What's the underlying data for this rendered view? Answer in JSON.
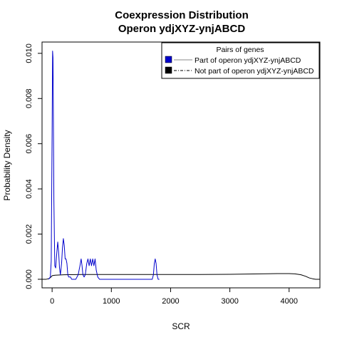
{
  "chart_data": {
    "type": "line",
    "title": "Coexpression Distribution",
    "subtitle": "Operon ydjXYZ-ynjABCD",
    "xlabel": "SCR",
    "ylabel": "Probability Density",
    "xlim": [
      -170,
      4520
    ],
    "ylim": [
      -0.00038,
      0.0105
    ],
    "x_ticks": [
      0,
      1000,
      2000,
      3000,
      4000
    ],
    "x_tick_labels": [
      "0",
      "1000",
      "2000",
      "3000",
      "4000"
    ],
    "y_ticks": [
      0.0,
      0.002,
      0.004,
      0.006,
      0.008,
      0.01
    ],
    "y_tick_labels": [
      "0.000",
      "0.002",
      "0.004",
      "0.006",
      "0.008",
      "0.010"
    ],
    "grid": false,
    "legend": {
      "title": "Pairs of genes",
      "placement": "top-right"
    },
    "series": [
      {
        "name": "Part of operon ydjXYZ-ynjABCD",
        "color": "#0000cc",
        "line_style": "solid",
        "legend_fill": "#0000cc",
        "x": [
          -60,
          -30,
          -15,
          0,
          8,
          15,
          22,
          30,
          45,
          60,
          80,
          95,
          110,
          125,
          140,
          160,
          175,
          190,
          205,
          220,
          235,
          250,
          265,
          280,
          295,
          310,
          330,
          360,
          400,
          440,
          470,
          490,
          505,
          520,
          540,
          560,
          585,
          605,
          625,
          645,
          665,
          685,
          705,
          725,
          745,
          770,
          800,
          1000,
          1500,
          1690,
          1710,
          1725,
          1740,
          1755,
          1770,
          1790,
          1810
        ],
        "y": [
          0.0,
          0.0001,
          0.0008,
          0.0065,
          0.0101,
          0.0098,
          0.007,
          0.0035,
          0.0006,
          0.0005,
          0.0012,
          0.00165,
          0.0012,
          0.0005,
          0.0002,
          0.0007,
          0.0014,
          0.0018,
          0.0015,
          0.0009,
          0.0009,
          0.0007,
          0.0002,
          0.0001,
          0.0001,
          0.0001,
          0.0,
          0.0,
          0.0,
          0.0002,
          0.0006,
          0.0009,
          0.0006,
          0.0002,
          0.0001,
          0.0002,
          0.0007,
          0.0009,
          0.0006,
          0.0009,
          0.0006,
          0.0009,
          0.0006,
          0.0009,
          0.0004,
          0.0001,
          0.0,
          0.0,
          0.0,
          0.0,
          0.0002,
          0.0007,
          0.0009,
          0.0007,
          0.0002,
          0.0,
          0.0
        ]
      },
      {
        "name": "Not part of operon ydjXYZ-ynjABCD",
        "color": "#000000",
        "line_style": "dashdot",
        "legend_fill": "#000000",
        "x": [
          -170,
          -100,
          -50,
          -10,
          0,
          50,
          200,
          500,
          1000,
          1500,
          2000,
          2500,
          3000,
          3500,
          3800,
          4000,
          4100,
          4200,
          4280,
          4340,
          4400,
          4450,
          4520
        ],
        "y": [
          0.0,
          0.0,
          3e-05,
          0.00012,
          0.00016,
          0.00018,
          0.0002,
          0.00021,
          0.00021,
          0.00021,
          0.00021,
          0.00021,
          0.00022,
          0.00024,
          0.00025,
          0.00025,
          0.00024,
          0.0002,
          0.00013,
          6e-05,
          2e-05,
          0.0,
          0.0
        ]
      }
    ]
  }
}
